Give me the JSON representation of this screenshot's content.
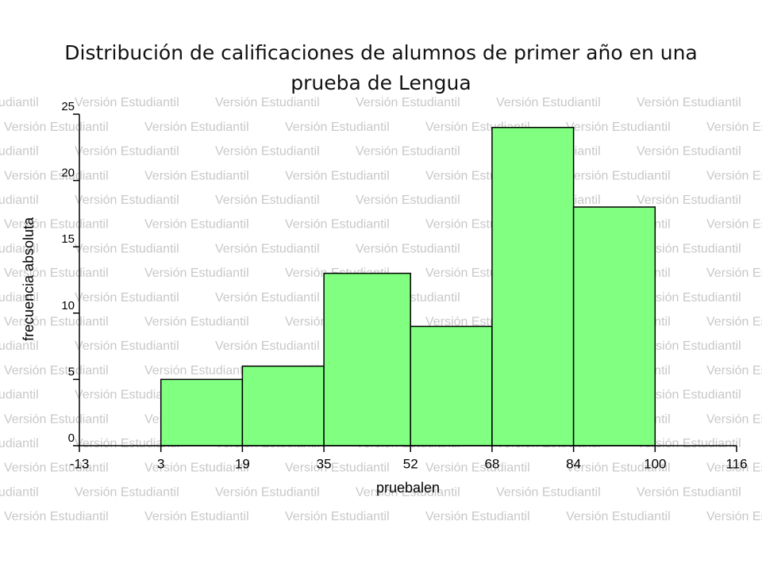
{
  "chart_data": {
    "type": "histogram",
    "title": "Distribución de calificaciones de alumnos de primer año en una prueba de Lengua",
    "watermark": "Versión Estudiantil",
    "x_label": "pruebalen",
    "y_label": "frecuencia absoluta",
    "bins": [
      3,
      19,
      35,
      52,
      68,
      84,
      100
    ],
    "values": [
      5,
      6,
      13,
      9,
      24,
      18
    ],
    "color": "#80ff80",
    "xlim": [
      -13,
      116
    ],
    "xticks": [
      -13,
      3,
      19,
      35,
      52,
      68,
      84,
      100,
      116
    ],
    "ylim": [
      0,
      25
    ],
    "yticks": [
      0,
      5,
      10,
      15,
      20,
      25
    ]
  }
}
